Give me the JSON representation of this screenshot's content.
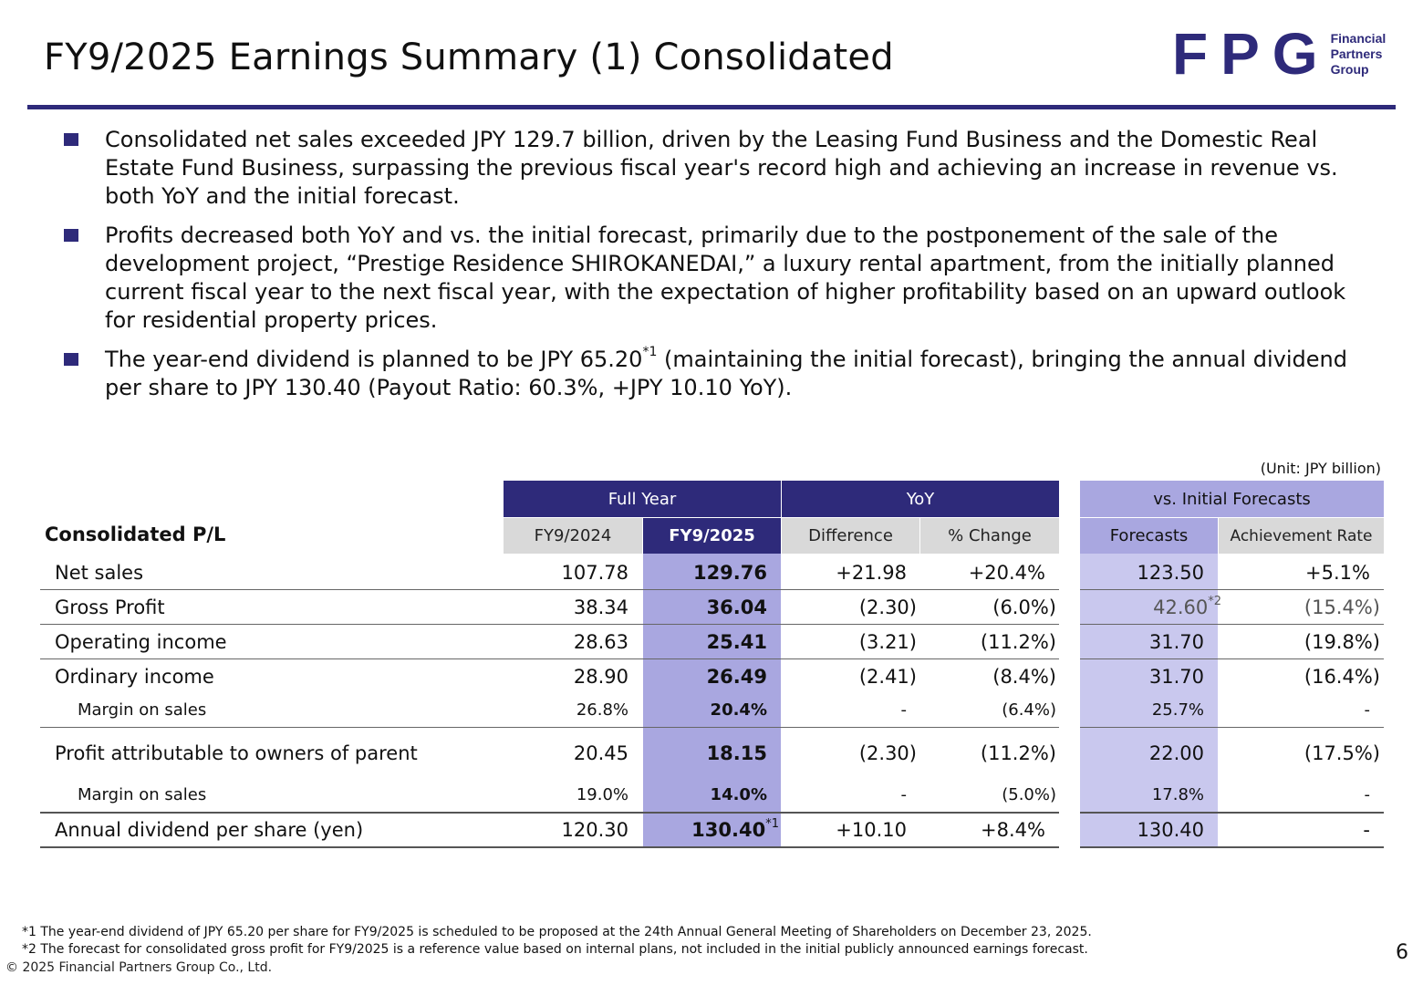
{
  "page": {
    "title": "FY9/2025 Earnings Summary (1) Consolidated",
    "page_number": "6",
    "copyright": "© 2025 Financial Partners Group Co., Ltd."
  },
  "logo": {
    "mark": "FPG",
    "line1": "Financial",
    "line2": "Partners",
    "line3": "Group"
  },
  "bullets": [
    {
      "text": "Consolidated net sales exceeded JPY 129.7 billion, driven by the Leasing Fund Business and the Domestic Real Estate Fund Business, surpassing the previous fiscal year's record high and achieving an increase in revenue vs. both YoY and the initial forecast."
    },
    {
      "text": "Profits decreased both YoY and vs. the initial forecast, primarily due to the postponement of the sale of the development project, “Prestige Residence SHIROKANEDAI,” a luxury rental apartment, from the initially planned current fiscal year to the next fiscal year, with the expectation of higher profitability based on an upward outlook for residential property prices."
    },
    {
      "text_before": "The year-end dividend is planned to be JPY 65.20",
      "sup": "*1",
      "text_after": " (maintaining the initial forecast), bringing the annual dividend per share to JPY 130.40 (Payout Ratio: 60.3%, +JPY 10.10 YoY)."
    }
  ],
  "table": {
    "unit": "(Unit: JPY billion)",
    "row_header": "Consolidated P/L",
    "groups": {
      "full_year": "Full Year",
      "yoy": "YoY",
      "vs_initial": "vs. Initial Forecasts"
    },
    "columns": {
      "fy2024": "FY9/2024",
      "fy2025": "FY9/2025",
      "difference": "Difference",
      "pct_change": "% Change",
      "forecasts": "Forecasts",
      "achievement": "Achievement Rate"
    },
    "rows": [
      {
        "label": "Net sales",
        "fy2024": "107.78",
        "fy2025": "129.76",
        "difference": "+21.98",
        "pct_change": "+20.4%",
        "forecasts": "123.50",
        "achievement": "+5.1%"
      },
      {
        "label": "Gross Profit",
        "fy2024": "38.34",
        "fy2025": "36.04",
        "difference": "(2.30)",
        "pct_change": "(6.0%)",
        "forecasts": "42.60",
        "forecasts_note": "*2",
        "achievement": "(15.4%)"
      },
      {
        "label": "Operating income",
        "fy2024": "28.63",
        "fy2025": "25.41",
        "difference": "(3.21)",
        "pct_change": "(11.2%)",
        "forecasts": "31.70",
        "achievement": "(19.8%)"
      },
      {
        "label": "Ordinary income",
        "fy2024": "28.90",
        "fy2025": "26.49",
        "difference": "(2.41)",
        "pct_change": "(8.4%)",
        "forecasts": "31.70",
        "achievement": "(16.4%)"
      },
      {
        "label": "Margin on sales",
        "fy2024": "26.8%",
        "fy2025": "20.4%",
        "difference": "-",
        "pct_change": "(6.4%)",
        "forecasts": "25.7%",
        "achievement": "-"
      },
      {
        "label": "Profit attributable to owners of parent",
        "fy2024": "20.45",
        "fy2025": "18.15",
        "difference": "(2.30)",
        "pct_change": "(11.2%)",
        "forecasts": "22.00",
        "achievement": "(17.5%)"
      },
      {
        "label": "Margin on sales",
        "fy2024": "19.0%",
        "fy2025": "14.0%",
        "difference": "-",
        "pct_change": "(5.0%)",
        "forecasts": "17.8%",
        "achievement": "-"
      },
      {
        "label": "Annual dividend per share (yen)",
        "fy2024": "120.30",
        "fy2025": "130.40",
        "fy2025_note": "*1",
        "difference": "+10.10",
        "pct_change": "+8.4%",
        "forecasts": "130.40",
        "achievement": "-"
      }
    ]
  },
  "footnotes": [
    "*1 The year-end dividend of JPY 65.20 per share for FY9/2025 is scheduled to be proposed at the 24th Annual General Meeting of Shareholders on December 23, 2025.",
    "*2 The forecast for consolidated gross profit for FY9/2025 is a reference value based on internal plans, not included in the initial publicly announced earnings forecast."
  ],
  "colors": {
    "navy": "#2e2a7a",
    "header_light": "#a9a7e0",
    "fy2025_column": "#a9a7e0",
    "forecast_column": "#c9c8ee",
    "header_gray": "#d9d9d9"
  }
}
